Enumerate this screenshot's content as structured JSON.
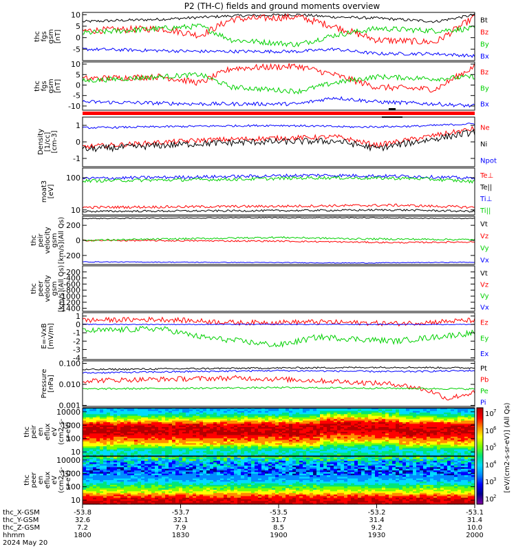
{
  "title": "P2 (TH-C) fields and ground moments overview",
  "colors": {
    "black": "#000000",
    "red": "#ff0000",
    "green": "#00d000",
    "blue": "#0000ff"
  },
  "chart_data": [
    {
      "type": "line",
      "id": "p1",
      "ylabel": [
        "thc",
        "fgs",
        "gsm",
        "[nT]"
      ],
      "ylim": [
        -10,
        11
      ],
      "yticks": [
        10,
        5,
        0,
        -5
      ],
      "tick_labels": [
        "10",
        "5",
        "0",
        "-5"
      ],
      "series": [
        {
          "name": "Bt",
          "color": "#000000",
          "points": [
            [
              0,
              7
            ],
            [
              0.2,
              8
            ],
            [
              0.38,
              9.5
            ],
            [
              0.55,
              10
            ],
            [
              0.64,
              9
            ],
            [
              0.75,
              8.5
            ],
            [
              0.9,
              7
            ],
            [
              1,
              10
            ]
          ],
          "noise": 0.6
        },
        {
          "name": "Bz",
          "color": "#ff0000",
          "points": [
            [
              0,
              3
            ],
            [
              0.2,
              4
            ],
            [
              0.3,
              1
            ],
            [
              0.38,
              8
            ],
            [
              0.55,
              9
            ],
            [
              0.64,
              5
            ],
            [
              0.75,
              -1
            ],
            [
              0.9,
              -2
            ],
            [
              1,
              9
            ]
          ],
          "noise": 1.5
        },
        {
          "name": "By",
          "color": "#00d000",
          "points": [
            [
              0,
              2
            ],
            [
              0.2,
              4
            ],
            [
              0.3,
              5
            ],
            [
              0.38,
              -1
            ],
            [
              0.55,
              -3
            ],
            [
              0.64,
              1
            ],
            [
              0.75,
              4
            ],
            [
              0.9,
              3
            ],
            [
              1,
              4
            ]
          ],
          "noise": 1.2
        },
        {
          "name": "Bx",
          "color": "#0000ff",
          "points": [
            [
              0,
              -5
            ],
            [
              0.3,
              -6
            ],
            [
              0.55,
              -6
            ],
            [
              0.64,
              -5
            ],
            [
              0.75,
              -7
            ],
            [
              0.9,
              -7
            ],
            [
              1,
              -8
            ]
          ],
          "noise": 0.7
        }
      ]
    },
    {
      "type": "line",
      "id": "p2",
      "ylabel": [
        "thc",
        "fgs",
        "gsm",
        "[nT]"
      ],
      "ylim": [
        -12,
        11
      ],
      "yticks": [
        10,
        5,
        0,
        -5,
        -10
      ],
      "tick_labels": [
        "10",
        "5",
        "0",
        "-5",
        "-10"
      ],
      "series": [
        {
          "name": "Bz",
          "color": "#ff0000",
          "points": [
            [
              0,
              3
            ],
            [
              0.2,
              4
            ],
            [
              0.3,
              1
            ],
            [
              0.38,
              8
            ],
            [
              0.55,
              9
            ],
            [
              0.64,
              5
            ],
            [
              0.75,
              -1
            ],
            [
              0.9,
              -2
            ],
            [
              1,
              9
            ]
          ],
          "noise": 1.5
        },
        {
          "name": "By",
          "color": "#00d000",
          "points": [
            [
              0,
              2
            ],
            [
              0.2,
              4
            ],
            [
              0.3,
              5
            ],
            [
              0.38,
              -1
            ],
            [
              0.55,
              -3
            ],
            [
              0.64,
              1
            ],
            [
              0.75,
              4
            ],
            [
              0.9,
              3
            ],
            [
              1,
              4
            ]
          ],
          "noise": 1.2
        },
        {
          "name": "Bx",
          "color": "#0000ff",
          "points": [
            [
              0,
              -8
            ],
            [
              0.3,
              -9
            ],
            [
              0.55,
              -9
            ],
            [
              0.64,
              -6
            ],
            [
              0.75,
              -8
            ],
            [
              0.9,
              -9
            ],
            [
              1,
              -10
            ]
          ],
          "noise": 0.9
        }
      ]
    },
    {
      "type": "line",
      "id": "p3",
      "ylabel": [
        "Density",
        "[1/cc]",
        "[cm-3]"
      ],
      "ylim": [
        -1.5,
        1.5
      ],
      "yticks": [
        1,
        0,
        -1
      ],
      "tick_labels": [
        "1",
        "0",
        "-1"
      ],
      "series": [
        {
          "name": "Ne",
          "color": "#ff0000",
          "points": [
            [
              0,
              -0.3
            ],
            [
              0.3,
              0.1
            ],
            [
              0.45,
              0.2
            ],
            [
              0.65,
              0.3
            ],
            [
              0.75,
              -0.2
            ],
            [
              0.9,
              0.4
            ],
            [
              1,
              0.8
            ]
          ],
          "noise": 0.15
        },
        {
          "name": "Ni",
          "color": "#000000",
          "points": [
            [
              0,
              -0.45
            ],
            [
              0.3,
              -0.1
            ],
            [
              0.45,
              0
            ],
            [
              0.65,
              0.05
            ],
            [
              0.75,
              -0.4
            ],
            [
              0.9,
              0.2
            ],
            [
              1,
              0.6
            ]
          ],
          "noise": 0.2
        },
        {
          "name": "Npot",
          "color": "#0000ff",
          "points": [
            [
              0,
              0.85
            ],
            [
              0.3,
              0.95
            ],
            [
              0.5,
              1
            ],
            [
              0.7,
              0.9
            ],
            [
              0.85,
              0.95
            ],
            [
              1,
              1.1
            ]
          ],
          "noise": 0.06
        }
      ]
    },
    {
      "type": "line",
      "id": "p4",
      "ylabel": [
        "moat3",
        "[eV]"
      ],
      "ylim": [
        7,
        200
      ],
      "log": true,
      "yticks": [
        100,
        10
      ],
      "tick_labels": [
        "100",
        "10"
      ],
      "series": [
        {
          "name": "Te⊥",
          "color": "#ff0000",
          "points": [
            [
              0,
              12
            ],
            [
              0.5,
              13
            ],
            [
              0.8,
              14
            ],
            [
              1,
              12
            ]
          ],
          "noise": 0.04
        },
        {
          "name": "Te||",
          "color": "#000000",
          "points": [
            [
              0,
              9
            ],
            [
              0.5,
              9.5
            ],
            [
              0.8,
              10
            ],
            [
              1,
              9
            ]
          ],
          "noise": 0.03
        },
        {
          "name": "Ti⊥",
          "color": "#0000ff",
          "points": [
            [
              0,
              95
            ],
            [
              0.4,
              110
            ],
            [
              0.6,
              120
            ],
            [
              0.85,
              110
            ],
            [
              1,
              95
            ]
          ],
          "noise": 0.05
        },
        {
          "name": "Ti||",
          "color": "#00d000",
          "points": [
            [
              0,
              80
            ],
            [
              0.4,
              90
            ],
            [
              0.6,
              100
            ],
            [
              0.85,
              95
            ],
            [
              1,
              75
            ]
          ],
          "noise": 0.05
        }
      ]
    },
    {
      "type": "line",
      "id": "p5",
      "ylabel": [
        "thc",
        "peir",
        "velocity",
        "gsm",
        "[km/s](All Qs)"
      ],
      "ylim": [
        -320,
        320
      ],
      "yticks": [
        200,
        0,
        -200
      ],
      "tick_labels": [
        "200",
        "0",
        "-200"
      ],
      "series": [
        {
          "name": "Vt",
          "color": "#000000",
          "points": [
            [
              0,
              290
            ],
            [
              0.4,
              300
            ],
            [
              0.7,
              300
            ],
            [
              1,
              290
            ]
          ],
          "noise": 6
        },
        {
          "name": "Vz",
          "color": "#ff0000",
          "points": [
            [
              0,
              0
            ],
            [
              0.5,
              -10
            ],
            [
              0.8,
              -30
            ],
            [
              1,
              -20
            ]
          ],
          "noise": 10
        },
        {
          "name": "Vy",
          "color": "#00d000",
          "points": [
            [
              0,
              0
            ],
            [
              0.5,
              40
            ],
            [
              0.7,
              20
            ],
            [
              1,
              10
            ]
          ],
          "noise": 12
        },
        {
          "name": "Vx",
          "color": "#0000ff",
          "points": [
            [
              0,
              -285
            ],
            [
              0.5,
              -295
            ],
            [
              0.7,
              -300
            ],
            [
              1,
              -290
            ]
          ],
          "noise": 5
        }
      ]
    },
    {
      "type": "line",
      "id": "p6",
      "ylabel": [
        "thc",
        "peer",
        "velocity",
        "gsm",
        "[km/s](All Qs)"
      ],
      "ylim": [
        -1500,
        0
      ],
      "yticks": [
        -200,
        -400,
        -600,
        -800,
        -1000,
        -1200,
        -1400
      ],
      "tick_labels": [
        "-200",
        "-400",
        "-600",
        "-800",
        "-1000",
        "-1200",
        "-1400"
      ],
      "series": [
        {
          "name": "Vt",
          "color": "#000000",
          "points": []
        },
        {
          "name": "Vz",
          "color": "#ff0000",
          "points": []
        },
        {
          "name": "Vy",
          "color": "#00d000",
          "points": []
        },
        {
          "name": "Vx",
          "color": "#0000ff",
          "points": []
        }
      ]
    },
    {
      "type": "line",
      "id": "p7",
      "ylabel": [
        "E=-VxB",
        "[mV/m]"
      ],
      "ylim": [
        -4.2,
        1.4
      ],
      "yticks": [
        1,
        0,
        -1,
        -2,
        -3,
        -4
      ],
      "tick_labels": [
        "1",
        "0",
        "-1",
        "-2",
        "-3",
        "-4"
      ],
      "series": [
        {
          "name": "Ez",
          "color": "#ff0000",
          "points": [
            [
              0,
              0.5
            ],
            [
              0.2,
              0.6
            ],
            [
              0.4,
              0.2
            ],
            [
              0.6,
              0.3
            ],
            [
              0.8,
              0.1
            ],
            [
              1,
              0.5
            ]
          ],
          "noise": 0.3
        },
        {
          "name": "Ey",
          "color": "#00d000",
          "points": [
            [
              0,
              -0.8
            ],
            [
              0.2,
              -0.5
            ],
            [
              0.3,
              -1.5
            ],
            [
              0.5,
              -2.5
            ],
            [
              0.6,
              -1.5
            ],
            [
              0.8,
              -2
            ],
            [
              1,
              -1
            ]
          ],
          "noise": 0.35
        },
        {
          "name": "Ex",
          "color": "#0000ff",
          "points": [
            [
              0,
              0
            ],
            [
              1,
              0
            ]
          ],
          "noise": 0.05
        }
      ]
    },
    {
      "type": "line",
      "id": "p8",
      "ylabel": [
        "Pressure",
        "[nPa]"
      ],
      "ylim": [
        0.0009,
        0.13
      ],
      "log": true,
      "yticks": [
        0.1,
        0.01,
        0.001
      ],
      "tick_labels": [
        "0.100",
        "0.010",
        "0.001"
      ],
      "series": [
        {
          "name": "Pt",
          "color": "#000000",
          "points": [
            [
              0,
              0.05
            ],
            [
              0.5,
              0.06
            ],
            [
              0.8,
              0.065
            ],
            [
              1,
              0.06
            ]
          ],
          "noise": 0.04
        },
        {
          "name": "Pb",
          "color": "#ff0000",
          "points": [
            [
              0,
              0.015
            ],
            [
              0.4,
              0.02
            ],
            [
              0.6,
              0.015
            ],
            [
              0.8,
              0.01
            ],
            [
              0.93,
              0.002
            ],
            [
              1,
              0.004
            ]
          ],
          "noise": 0.12
        },
        {
          "name": "Pe",
          "color": "#00d000",
          "points": [
            [
              0,
              0.006
            ],
            [
              0.5,
              0.007
            ],
            [
              0.8,
              0.0065
            ],
            [
              1,
              0.006
            ]
          ],
          "noise": 0.04
        },
        {
          "name": "Pi",
          "color": "#0000ff",
          "points": [
            [
              0,
              0.035
            ],
            [
              0.5,
              0.045
            ],
            [
              0.8,
              0.04
            ],
            [
              1,
              0.045
            ]
          ],
          "noise": 0.04
        }
      ]
    },
    {
      "type": "heatmap",
      "id": "p9",
      "ylabel": [
        "thc",
        "peir",
        "en",
        "eflux",
        "eV",
        "(cm2-s-",
        "sr-eV)"
      ],
      "ylim": [
        5,
        20000
      ],
      "log": true,
      "yticks": [
        10000,
        1000,
        100,
        10
      ],
      "tick_labels": [
        "10000",
        "1000",
        "100",
        "10"
      ]
    },
    {
      "type": "heatmap",
      "id": "p10",
      "ylabel": [
        "thc",
        "peer",
        "en",
        "eflux",
        "eV",
        "(cm2-s-",
        "sr-eV)"
      ],
      "ylim": [
        5,
        20000
      ],
      "log": true,
      "yticks": [
        10000,
        1000,
        100,
        10
      ],
      "tick_labels": [
        "10000",
        "1000",
        "100",
        "10"
      ]
    }
  ],
  "colorbar": {
    "unit_label": "[eV/(cm2-s-sr-eV)] (All Qs)",
    "tick_labels": [
      "10",
      "10",
      "10",
      "10",
      "10",
      "10"
    ],
    "exponents": [
      "7",
      "6",
      "5",
      "4",
      "3",
      "2"
    ]
  },
  "xaxis": {
    "rows": [
      {
        "label": "thc_X-GSM",
        "values": [
          "-53.8",
          "-53.7",
          "-53.5",
          "-53.2",
          "-53.1"
        ]
      },
      {
        "label": "thc_Y-GSM",
        "values": [
          "32.6",
          "32.1",
          "31.7",
          "31.4",
          "31.4"
        ]
      },
      {
        "label": "thc_Z-GSM",
        "values": [
          "7.2",
          "7.9",
          "8.5",
          "9.2",
          "10.0"
        ]
      },
      {
        "label": "hhmm",
        "values": [
          "1800",
          "1830",
          "1900",
          "1930",
          "2000"
        ]
      }
    ],
    "date": "2024 May 20"
  }
}
